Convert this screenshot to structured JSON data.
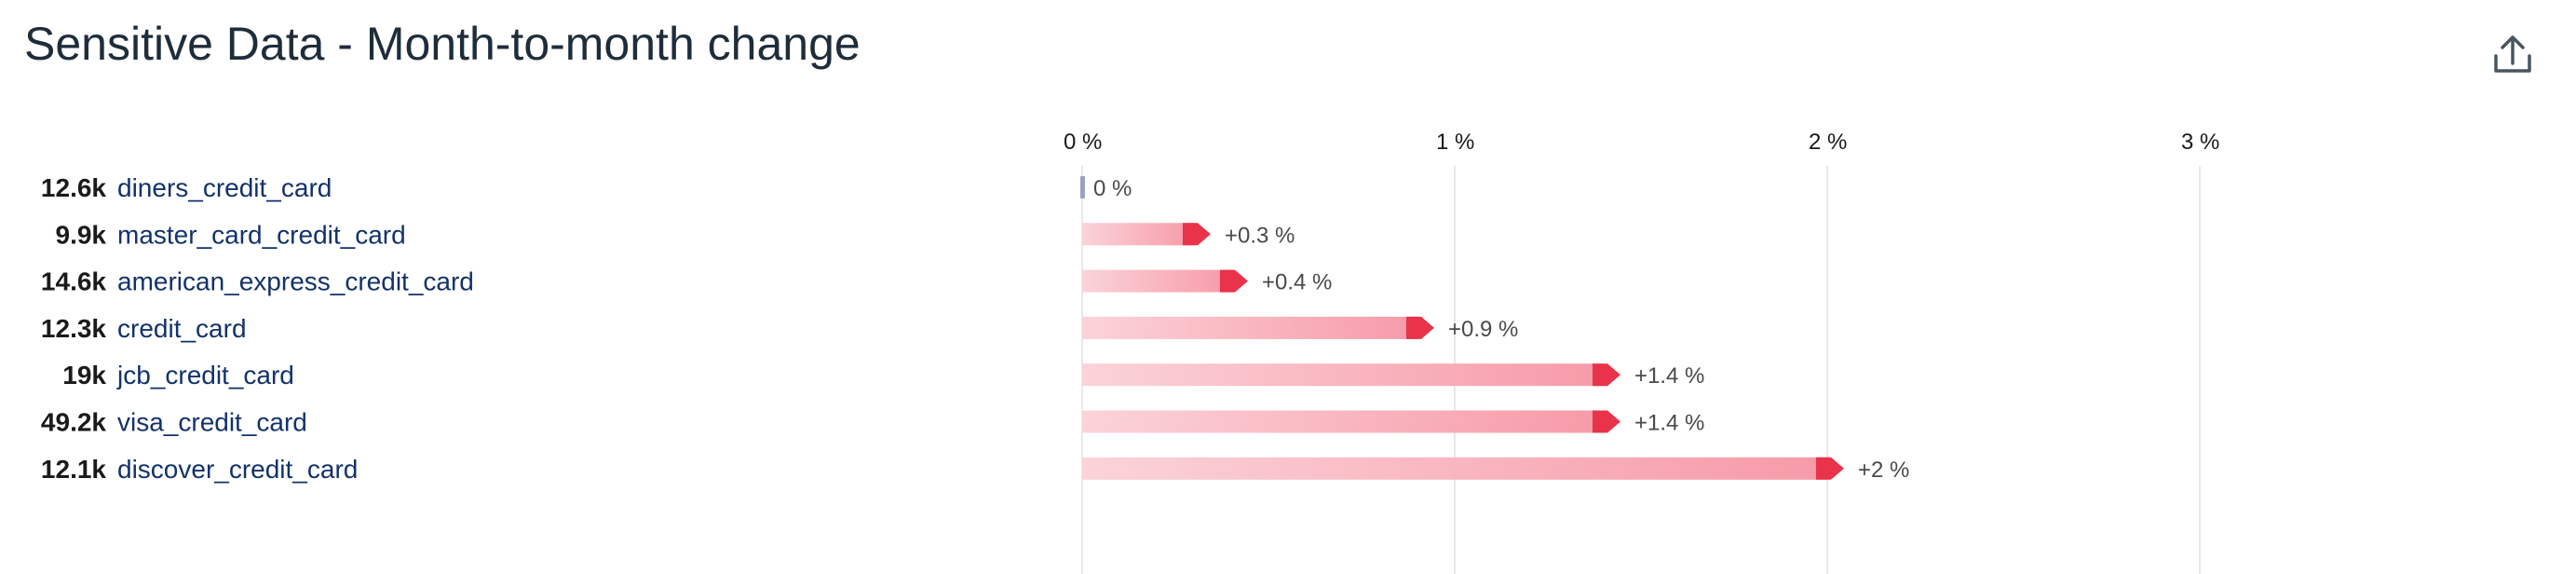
{
  "header": {
    "title": "Sensitive Data - Month-to-month change",
    "export_icon": "export-upload-icon"
  },
  "colors": {
    "bar_light": "#fbd3d9",
    "bar_dark": "#f79aa8",
    "bar_tip": "#e8334a",
    "zero_marker": "#9aa1c4",
    "count_text": "#1a1a1a",
    "name_text": "#12326a",
    "grid": "#e8e8ec",
    "tick_text": "#1a1a1a",
    "value_text": "#4a4a4a"
  },
  "chart_data": {
    "type": "bar",
    "orientation": "horizontal",
    "title": "Sensitive Data - Month-to-month change",
    "xlabel": "",
    "ylabel": "",
    "xlim": [
      0,
      3
    ],
    "xticks": [
      0,
      1,
      2,
      3
    ],
    "xtick_labels": [
      "0 %",
      "1 %",
      "2 %",
      "3 %"
    ],
    "grid": true,
    "categories": [
      "diners_credit_card",
      "master_card_credit_card",
      "american_express_credit_card",
      "credit_card",
      "jcb_credit_card",
      "visa_credit_card",
      "discover_credit_card"
    ],
    "counts": [
      "12.6k",
      "9.9k",
      "14.6k",
      "12.3k",
      "19k",
      "49.2k",
      "12.1k"
    ],
    "values": [
      0,
      0.3,
      0.4,
      0.9,
      1.4,
      1.4,
      2
    ],
    "value_labels": [
      "0 %",
      "+0.3 %",
      "+0.4 %",
      "+0.9 %",
      "+1.4 %",
      "+1.4 %",
      "+2 %"
    ]
  }
}
